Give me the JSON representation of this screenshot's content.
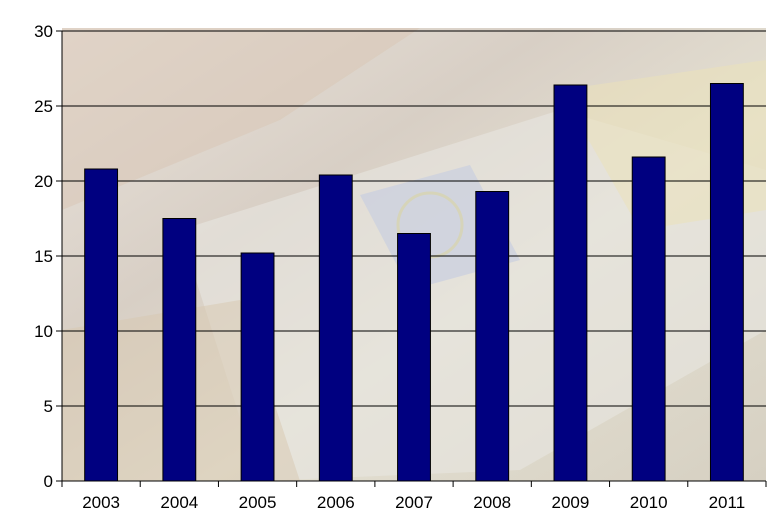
{
  "chart_data": {
    "type": "bar",
    "title": "",
    "xlabel": "",
    "ylabel": "",
    "categories": [
      "2003",
      "2004",
      "2005",
      "2006",
      "2007",
      "2008",
      "2009",
      "2010",
      "2011"
    ],
    "values": [
      20.8,
      17.5,
      15.2,
      20.4,
      16.5,
      19.3,
      26.4,
      21.6,
      26.5
    ],
    "ylim": [
      0,
      30
    ],
    "yticks": [
      "0",
      "5",
      "10",
      "15",
      "20",
      "25",
      "30"
    ],
    "grid": true,
    "legend": "none",
    "colors": {
      "bar_fill": "#000080",
      "bar_stroke": "#000000",
      "gridline": "#000000",
      "axis": "#000000",
      "text": "#000000"
    },
    "background": "photo of euro banknotes (faded)"
  }
}
